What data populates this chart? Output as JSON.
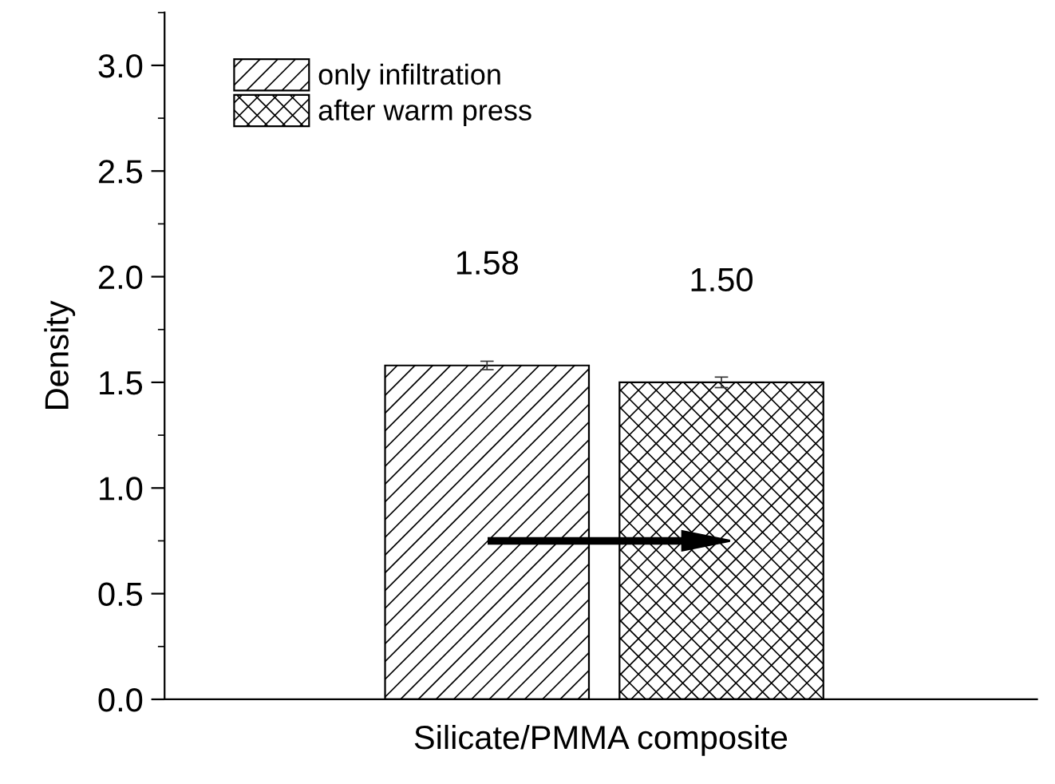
{
  "chart_data": {
    "type": "bar",
    "xlabel": "Silicate/PMMA composite",
    "ylabel": "Density",
    "categories": [
      null
    ],
    "series": [
      {
        "name": "only infiltration",
        "color": "#000000",
        "values": [
          1.58
        ],
        "errors": [
          0.02
        ],
        "value_labels": [
          "1.58"
        ]
      },
      {
        "name": "after warm press",
        "color": "#000000",
        "values": [
          1.5
        ],
        "errors": [
          0.025
        ],
        "value_labels": [
          "1.50"
        ]
      }
    ],
    "ylim": [
      0,
      3.25
    ],
    "yticks": [
      {
        "value": 0,
        "label": "0.0"
      },
      0.5,
      {
        "value": 1,
        "label": "1.0"
      },
      1.5,
      {
        "value": 2,
        "label": "2.0"
      },
      2.5,
      {
        "value": 3,
        "label": "3.0"
      }
    ],
    "grid": false,
    "legend": "top left"
  }
}
